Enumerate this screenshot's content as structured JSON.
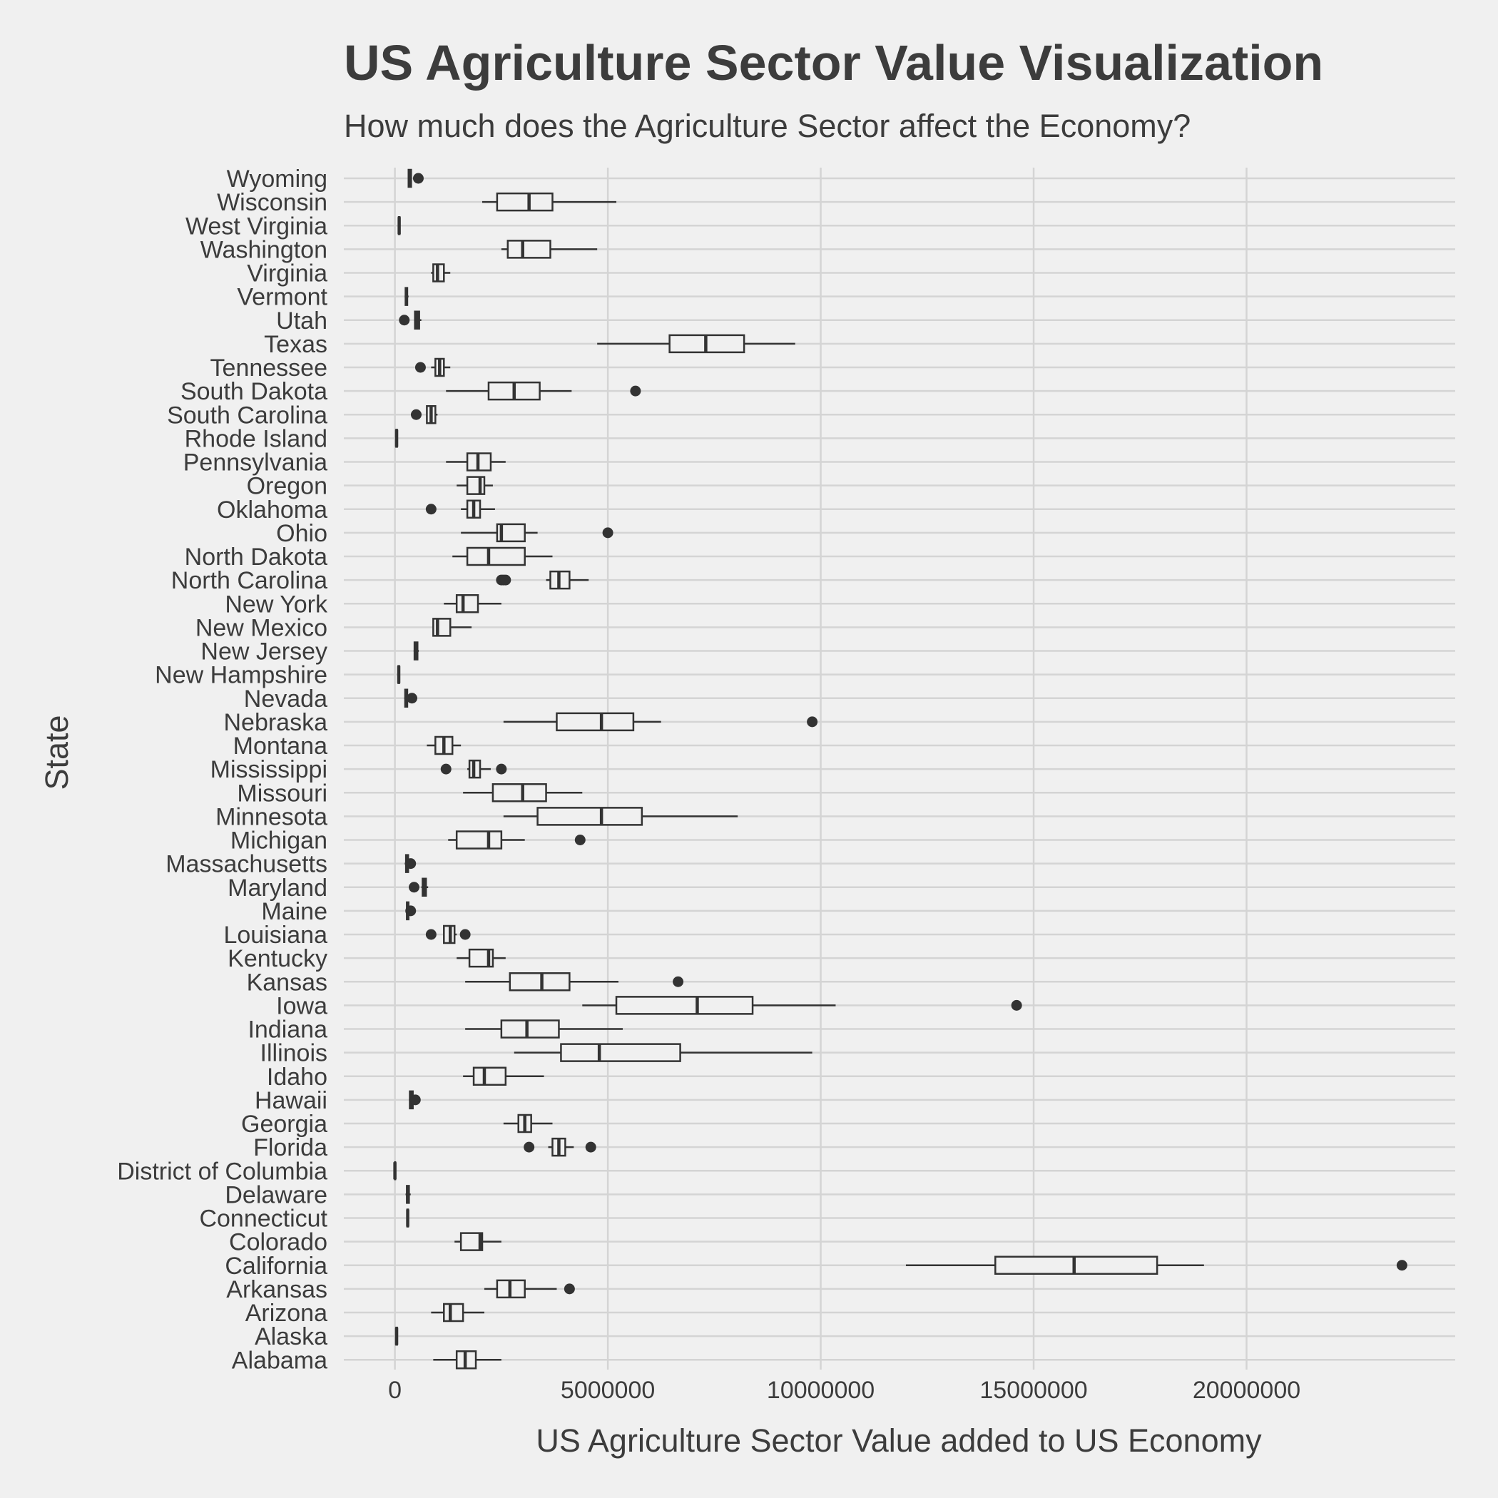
{
  "chart_data": {
    "type": "box",
    "title": "US Agriculture Sector Value Visualization",
    "subtitle": "How much does the Agriculture Sector affect the Economy?",
    "xlabel": "US Agriculture Sector Value added to US Economy",
    "ylabel": "State",
    "xlim": [
      -1200000,
      24900000
    ],
    "x_ticks": [
      0,
      5000000,
      10000000,
      15000000,
      20000000
    ],
    "x_tick_labels": [
      "0",
      "5000000",
      "10000000",
      "15000000",
      "20000000"
    ],
    "grid": true,
    "legend": "none",
    "states": [
      {
        "name": "Alabama",
        "min": 900000,
        "q1": 1450000,
        "median": 1650000,
        "q3": 1900000,
        "max": 2500000,
        "outliers": []
      },
      {
        "name": "Alaska",
        "min": 20000,
        "q1": 30000,
        "median": 40000,
        "q3": 50000,
        "max": 60000,
        "outliers": []
      },
      {
        "name": "Arizona",
        "min": 850000,
        "q1": 1150000,
        "median": 1300000,
        "q3": 1600000,
        "max": 2100000,
        "outliers": []
      },
      {
        "name": "Arkansas",
        "min": 2100000,
        "q1": 2400000,
        "median": 2700000,
        "q3": 3050000,
        "max": 3800000,
        "outliers": [
          4100000
        ]
      },
      {
        "name": "California",
        "min": 12000000,
        "q1": 14100000,
        "median": 15950000,
        "q3": 17900000,
        "max": 19000000,
        "outliers": [
          23650000
        ]
      },
      {
        "name": "Colorado",
        "min": 1400000,
        "q1": 1550000,
        "median": 2000000,
        "q3": 2050000,
        "max": 2500000,
        "outliers": []
      },
      {
        "name": "Connecticut",
        "min": 270000,
        "q1": 290000,
        "median": 300000,
        "q3": 310000,
        "max": 330000,
        "outliers": []
      },
      {
        "name": "Delaware",
        "min": 250000,
        "q1": 280000,
        "median": 300000,
        "q3": 330000,
        "max": 370000,
        "outliers": []
      },
      {
        "name": "District of Columbia",
        "min": 0,
        "q1": 0,
        "median": 0,
        "q3": 0,
        "max": 0,
        "outliers": []
      },
      {
        "name": "Florida",
        "min": 3600000,
        "q1": 3700000,
        "median": 3850000,
        "q3": 4000000,
        "max": 4200000,
        "outliers": [
          3150000,
          4600000
        ]
      },
      {
        "name": "Georgia",
        "min": 2550000,
        "q1": 2900000,
        "median": 3050000,
        "q3": 3200000,
        "max": 3700000,
        "outliers": []
      },
      {
        "name": "Hawaii",
        "min": 330000,
        "q1": 350000,
        "median": 380000,
        "q3": 420000,
        "max": 470000,
        "outliers": [
          480000
        ]
      },
      {
        "name": "Idaho",
        "min": 1600000,
        "q1": 1850000,
        "median": 2100000,
        "q3": 2600000,
        "max": 3500000,
        "outliers": []
      },
      {
        "name": "Illinois",
        "min": 2800000,
        "q1": 3900000,
        "median": 4800000,
        "q3": 6700000,
        "max": 9800000,
        "outliers": []
      },
      {
        "name": "Indiana",
        "min": 1650000,
        "q1": 2500000,
        "median": 3100000,
        "q3": 3850000,
        "max": 5350000,
        "outliers": []
      },
      {
        "name": "Iowa",
        "min": 4400000,
        "q1": 5200000,
        "median": 7100000,
        "q3": 8400000,
        "max": 10350000,
        "outliers": [
          14600000
        ]
      },
      {
        "name": "Kansas",
        "min": 1650000,
        "q1": 2700000,
        "median": 3450000,
        "q3": 4100000,
        "max": 5250000,
        "outliers": [
          6650000
        ]
      },
      {
        "name": "Kentucky",
        "min": 1450000,
        "q1": 1750000,
        "median": 2200000,
        "q3": 2300000,
        "max": 2600000,
        "outliers": []
      },
      {
        "name": "Louisiana",
        "min": 1150000,
        "q1": 1150000,
        "median": 1300000,
        "q3": 1400000,
        "max": 1450000,
        "outliers": [
          850000,
          1650000
        ]
      },
      {
        "name": "Maine",
        "min": 250000,
        "q1": 280000,
        "median": 300000,
        "q3": 320000,
        "max": 340000,
        "outliers": [
          370000
        ]
      },
      {
        "name": "Maryland",
        "min": 620000,
        "q1": 650000,
        "median": 700000,
        "q3": 730000,
        "max": 780000,
        "outliers": [
          450000
        ]
      },
      {
        "name": "Massachusetts",
        "min": 230000,
        "q1": 260000,
        "median": 290000,
        "q3": 310000,
        "max": 340000,
        "outliers": [
          370000
        ]
      },
      {
        "name": "Michigan",
        "min": 1250000,
        "q1": 1450000,
        "median": 2200000,
        "q3": 2500000,
        "max": 3050000,
        "outliers": [
          4350000
        ]
      },
      {
        "name": "Minnesota",
        "min": 2550000,
        "q1": 3350000,
        "median": 4850000,
        "q3": 5800000,
        "max": 8050000,
        "outliers": []
      },
      {
        "name": "Missouri",
        "min": 1600000,
        "q1": 2300000,
        "median": 3000000,
        "q3": 3550000,
        "max": 4400000,
        "outliers": []
      },
      {
        "name": "Mississippi",
        "min": 1700000,
        "q1": 1750000,
        "median": 1850000,
        "q3": 2000000,
        "max": 2250000,
        "outliers": [
          1200000,
          2500000
        ]
      },
      {
        "name": "Montana",
        "min": 750000,
        "q1": 950000,
        "median": 1150000,
        "q3": 1350000,
        "max": 1550000,
        "outliers": []
      },
      {
        "name": "Nebraska",
        "min": 2550000,
        "q1": 3800000,
        "median": 4850000,
        "q3": 5600000,
        "max": 6250000,
        "outliers": [
          9800000
        ]
      },
      {
        "name": "Nevada",
        "min": 220000,
        "q1": 240000,
        "median": 270000,
        "q3": 290000,
        "max": 320000,
        "outliers": [
          400000
        ]
      },
      {
        "name": "New Hampshire",
        "min": 70000,
        "q1": 80000,
        "median": 90000,
        "q3": 100000,
        "max": 110000,
        "outliers": []
      },
      {
        "name": "New Jersey",
        "min": 440000,
        "q1": 460000,
        "median": 500000,
        "q3": 530000,
        "max": 560000,
        "outliers": []
      },
      {
        "name": "New Mexico",
        "min": 900000,
        "q1": 900000,
        "median": 1000000,
        "q3": 1300000,
        "max": 1800000,
        "outliers": []
      },
      {
        "name": "New York",
        "min": 1150000,
        "q1": 1450000,
        "median": 1600000,
        "q3": 1950000,
        "max": 2500000,
        "outliers": []
      },
      {
        "name": "North Carolina",
        "min": 3550000,
        "q1": 3650000,
        "median": 3850000,
        "q3": 4100000,
        "max": 4550000,
        "outliers": [
          2500000,
          2550000,
          2600000
        ]
      },
      {
        "name": "North Dakota",
        "min": 1350000,
        "q1": 1700000,
        "median": 2200000,
        "q3": 3050000,
        "max": 3700000,
        "outliers": []
      },
      {
        "name": "Ohio",
        "min": 1550000,
        "q1": 2400000,
        "median": 2500000,
        "q3": 3050000,
        "max": 3350000,
        "outliers": [
          5000000
        ]
      },
      {
        "name": "Oklahoma",
        "min": 1550000,
        "q1": 1700000,
        "median": 1850000,
        "q3": 2000000,
        "max": 2350000,
        "outliers": [
          850000
        ]
      },
      {
        "name": "Oregon",
        "min": 1450000,
        "q1": 1700000,
        "median": 2000000,
        "q3": 2100000,
        "max": 2300000,
        "outliers": []
      },
      {
        "name": "Pennsylvania",
        "min": 1200000,
        "q1": 1700000,
        "median": 1950000,
        "q3": 2250000,
        "max": 2600000,
        "outliers": []
      },
      {
        "name": "Rhode Island",
        "min": 20000,
        "q1": 30000,
        "median": 40000,
        "q3": 50000,
        "max": 60000,
        "outliers": []
      },
      {
        "name": "South Carolina",
        "min": 750000,
        "q1": 750000,
        "median": 850000,
        "q3": 950000,
        "max": 1000000,
        "outliers": [
          500000
        ]
      },
      {
        "name": "South Dakota",
        "min": 1200000,
        "q1": 2200000,
        "median": 2800000,
        "q3": 3400000,
        "max": 4150000,
        "outliers": [
          5650000
        ]
      },
      {
        "name": "Tennessee",
        "min": 850000,
        "q1": 950000,
        "median": 1050000,
        "q3": 1150000,
        "max": 1300000,
        "outliers": [
          600000
        ]
      },
      {
        "name": "Texas",
        "min": 4750000,
        "q1": 6450000,
        "median": 7300000,
        "q3": 8200000,
        "max": 9400000,
        "outliers": []
      },
      {
        "name": "Utah",
        "min": 450000,
        "q1": 470000,
        "median": 520000,
        "q3": 570000,
        "max": 620000,
        "outliers": [
          220000
        ]
      },
      {
        "name": "Vermont",
        "min": 230000,
        "q1": 250000,
        "median": 270000,
        "q3": 290000,
        "max": 320000,
        "outliers": []
      },
      {
        "name": "Virginia",
        "min": 850000,
        "q1": 900000,
        "median": 1000000,
        "q3": 1150000,
        "max": 1300000,
        "outliers": []
      },
      {
        "name": "Washington",
        "min": 2500000,
        "q1": 2650000,
        "median": 3000000,
        "q3": 3650000,
        "max": 4750000,
        "outliers": []
      },
      {
        "name": "West Virginia",
        "min": 80000,
        "q1": 90000,
        "median": 100000,
        "q3": 110000,
        "max": 130000,
        "outliers": []
      },
      {
        "name": "Wisconsin",
        "min": 2050000,
        "q1": 2400000,
        "median": 3150000,
        "q3": 3700000,
        "max": 5200000,
        "outliers": []
      },
      {
        "name": "Wyoming",
        "min": 300000,
        "q1": 320000,
        "median": 350000,
        "q3": 380000,
        "max": 400000,
        "outliers": [
          550000
        ]
      }
    ]
  }
}
